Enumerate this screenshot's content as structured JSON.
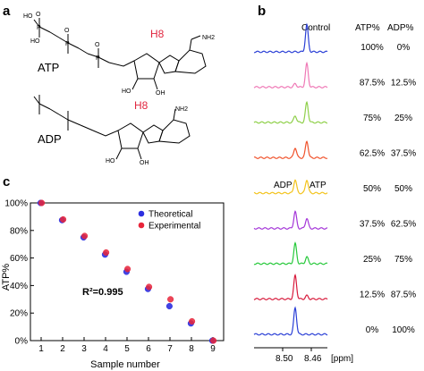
{
  "panel_a": {
    "letter": "a",
    "atp_name": "ATP",
    "adp_name": "ADP",
    "h8_label": "H8",
    "nh2_label": "NH2",
    "n_label": "N",
    "o_label": "O",
    "oh_label": "OH",
    "ho_label": "HO",
    "p_label": "P",
    "h8_color": "#e0263f"
  },
  "panel_b": {
    "letter": "b",
    "col_control": "Control",
    "col_atp": "ATP%",
    "col_adp": "ADP%",
    "adp_peak_label": "ADP",
    "atp_peak_label": "ATP",
    "x_ticks": [
      "8.50",
      "8.46"
    ],
    "x_unit": "[ppm]",
    "spectra": [
      {
        "atp": "100%",
        "adp": "0%",
        "atp_frac": 1.0,
        "color": "#2a3fd6"
      },
      {
        "atp": "87.5%",
        "adp": "12.5%",
        "atp_frac": 0.875,
        "color": "#ef79b6"
      },
      {
        "atp": "75%",
        "adp": "25%",
        "atp_frac": 0.75,
        "color": "#8fd04a"
      },
      {
        "atp": "62.5%",
        "adp": "37.5%",
        "atp_frac": 0.625,
        "color": "#f0522b"
      },
      {
        "atp": "50%",
        "adp": "50%",
        "atp_frac": 0.5,
        "color": "#f3c31b"
      },
      {
        "atp": "37.5%",
        "adp": "62.5%",
        "atp_frac": 0.375,
        "color": "#a436d8"
      },
      {
        "atp": "25%",
        "adp": "75%",
        "atp_frac": 0.25,
        "color": "#27c93b"
      },
      {
        "atp": "12.5%",
        "adp": "87.5%",
        "atp_frac": 0.125,
        "color": "#d81b3c"
      },
      {
        "atp": "0%",
        "adp": "100%",
        "atp_frac": 0.0,
        "color": "#2a3fd6"
      }
    ]
  },
  "panel_c": {
    "letter": "c",
    "r2_text": "R²=0.995",
    "theoretical_color": "#2d2fe0",
    "experimental_color": "#e8253a"
  },
  "chart_data": {
    "type": "scatter",
    "xlabel": "Sample number",
    "ylabel": "ATP%",
    "x": [
      1,
      2,
      3,
      4,
      5,
      6,
      7,
      8,
      9
    ],
    "xlim": [
      0.5,
      9.5
    ],
    "ylim": [
      0,
      100
    ],
    "y_ticks": [
      "0%",
      "20%",
      "40%",
      "60%",
      "80%",
      "100%"
    ],
    "x_ticks": [
      "1",
      "2",
      "3",
      "4",
      "5",
      "6",
      "7",
      "8",
      "9"
    ],
    "legend_position": "top-right",
    "series": [
      {
        "name": "Theoretical",
        "values": [
          100,
          87.5,
          75,
          62.5,
          50,
          37.5,
          25,
          12.5,
          0
        ]
      },
      {
        "name": "Experimental",
        "values": [
          100,
          88,
          76,
          64,
          52,
          39,
          30,
          14,
          0
        ]
      }
    ]
  }
}
